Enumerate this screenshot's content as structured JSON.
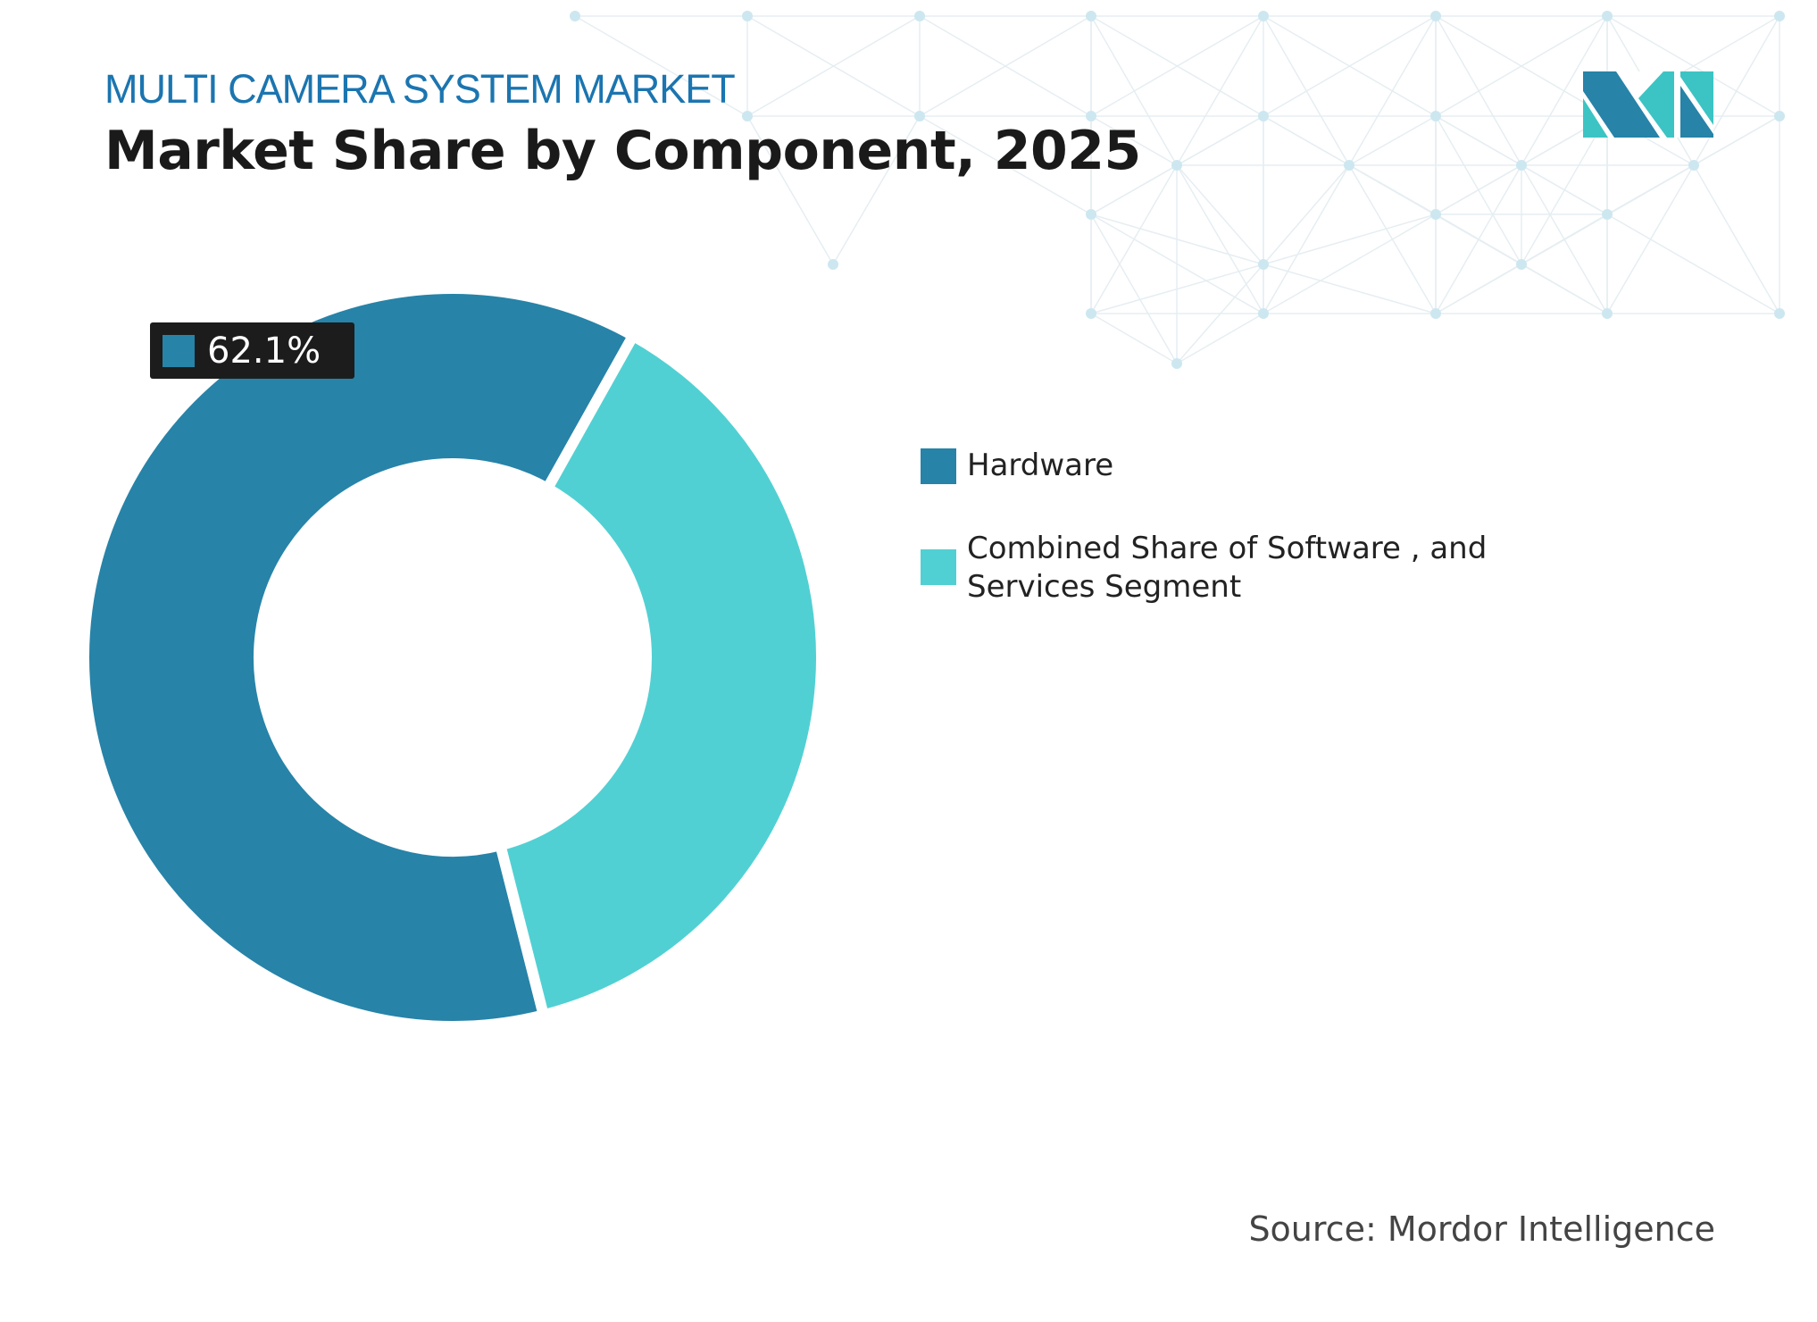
{
  "header": {
    "subtitle": "MULTI CAMERA SYSTEM MARKET",
    "title": "Market Share by Component, 2025"
  },
  "chart_data": {
    "type": "pie",
    "variant": "donut",
    "categories": [
      "Hardware",
      "Combined Share of Software , and Services Segment"
    ],
    "values": [
      62.1,
      37.9
    ],
    "colors": [
      "#2783a8",
      "#51d0d3"
    ],
    "data_labels": [
      "62.1%"
    ],
    "legend": "right"
  },
  "source": "Source: Mordor Intelligence",
  "logo": {
    "text": "MI",
    "colors": [
      "#2783a8",
      "#3cc4c4"
    ]
  }
}
